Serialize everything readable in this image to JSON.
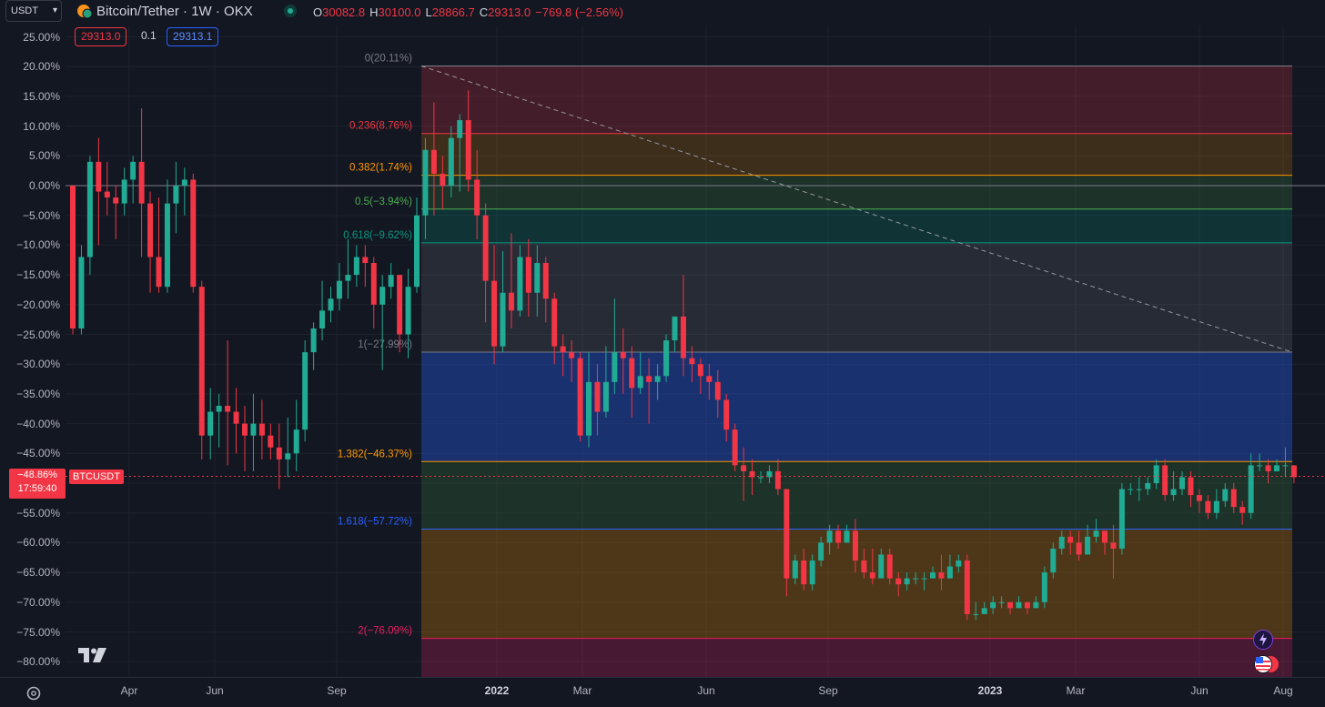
{
  "header": {
    "currency": "USDT",
    "symbol_title": "Bitcoin/Tether · 1W · OKX",
    "ohlc": [
      {
        "k": "O",
        "v": "30082.8"
      },
      {
        "k": "H",
        "v": "30100.0"
      },
      {
        "k": "L",
        "v": "28866.7"
      },
      {
        "k": "C",
        "v": "29313.0"
      }
    ],
    "change": "−769.8 (−2.56%)",
    "sell_price": "29313.0",
    "spread": "0.1",
    "buy_price": "29313.1"
  },
  "price_tag": {
    "percent": "−48.86%",
    "countdown": "17:59:40",
    "symbol": "BTCUSDT"
  },
  "y_axis_labels": [
    "25.00%",
    "20.00%",
    "15.00%",
    "10.00%",
    "5.00%",
    "0.00%",
    "−5.00%",
    "−10.00%",
    "−15.00%",
    "−20.00%",
    "−25.00%",
    "−30.00%",
    "−35.00%",
    "−40.00%",
    "−45.00%",
    "−50.00%",
    "−55.00%",
    "−60.00%",
    "−65.00%",
    "−70.00%",
    "−75.00%",
    "−80.00%"
  ],
  "x_axis_labels": [
    "Apr",
    "Jun",
    "Sep",
    "2022",
    "Mar",
    "Jun",
    "Sep",
    "2023",
    "Mar",
    "Jun",
    "Aug"
  ],
  "fib_levels": [
    {
      "ratio": "0",
      "label": "0(20.11%)",
      "pct": 20.11,
      "color": "#787b86"
    },
    {
      "ratio": "0.236",
      "label": "0.236(8.76%)",
      "pct": 8.76,
      "color": "#f23645"
    },
    {
      "ratio": "0.382",
      "label": "0.382(1.74%)",
      "pct": 1.74,
      "color": "#ff9800"
    },
    {
      "ratio": "0.5",
      "label": "0.5(−3.94%)",
      "pct": -3.94,
      "color": "#4caf50"
    },
    {
      "ratio": "0.618",
      "label": "0.618(−9.62%)",
      "pct": -9.62,
      "color": "#089981"
    },
    {
      "ratio": "1",
      "label": "1(−27.99%)",
      "pct": -27.99,
      "color": "#787b86"
    },
    {
      "ratio": "1.382",
      "label": "1.382(−46.37%)",
      "pct": -46.37,
      "color": "#ff9800"
    },
    {
      "ratio": "1.618",
      "label": "1.618(−57.72%)",
      "pct": -57.72,
      "color": "#2962ff"
    },
    {
      "ratio": "2",
      "label": "2(−76.09%)",
      "pct": -76.09,
      "color": "#e91e63"
    }
  ],
  "colors": {
    "up": "#22ab94",
    "down": "#f23645",
    "background": "#131722"
  },
  "icons": {
    "settings": "gear-icon",
    "logo": "tradingview-logo",
    "lightning": "lightning-icon",
    "flag": "us-flag-icon",
    "symbol": "bitcoin-tether-icon"
  },
  "chart_data": {
    "type": "candlestick",
    "y_unit": "percent change",
    "ylim": [
      -83,
      27
    ],
    "current_value": -48.86,
    "candles": [
      [
        0,
        -24,
        -25,
        -1
      ],
      [
        -24,
        -12,
        -25,
        -10
      ],
      [
        -12,
        4,
        -15,
        5
      ],
      [
        4,
        -1,
        -10,
        8
      ],
      [
        -1,
        -2,
        -5,
        4
      ],
      [
        -2,
        -3,
        -9,
        0
      ],
      [
        -3,
        1,
        -5,
        3
      ],
      [
        1,
        4,
        -3,
        5
      ],
      [
        4,
        -3,
        -12,
        13
      ],
      [
        -3,
        -12,
        -18,
        -1
      ],
      [
        -12,
        -17,
        -18,
        -2
      ],
      [
        -17,
        -3,
        -18,
        1
      ],
      [
        -3,
        0,
        -8,
        4
      ],
      [
        0,
        1,
        -5,
        3
      ],
      [
        1,
        -17,
        -18,
        2
      ],
      [
        -17,
        -42,
        -46,
        -16
      ],
      [
        -42,
        -38,
        -46,
        -34
      ],
      [
        -38,
        -37,
        -44,
        -35
      ],
      [
        -37,
        -38,
        -47,
        -26
      ],
      [
        -38,
        -40,
        -45,
        -34
      ],
      [
        -40,
        -42,
        -48,
        -37
      ],
      [
        -42,
        -40,
        -48,
        -35
      ],
      [
        -40,
        -42,
        -46,
        -36
      ],
      [
        -42,
        -44,
        -46,
        -40
      ],
      [
        -44,
        -46,
        -51,
        -40
      ],
      [
        -46,
        -45,
        -49,
        -39
      ],
      [
        -45,
        -41,
        -48,
        -36
      ],
      [
        -41,
        -28,
        -43,
        -26
      ],
      [
        -28,
        -24,
        -31,
        -23
      ],
      [
        -24,
        -21,
        -26,
        -16
      ],
      [
        -21,
        -19,
        -23,
        -17
      ],
      [
        -19,
        -16,
        -21,
        -13
      ],
      [
        -16,
        -15,
        -19,
        -9
      ],
      [
        -15,
        -12,
        -17,
        -10
      ],
      [
        -12,
        -13,
        -17,
        -10
      ],
      [
        -13,
        -20,
        -24,
        -12
      ],
      [
        -20,
        -17,
        -31,
        -15
      ],
      [
        -17,
        -15,
        -19,
        -13
      ],
      [
        -15,
        -25,
        -28,
        -15
      ],
      [
        -25,
        -17,
        -29,
        -14
      ],
      [
        -17,
        -5,
        -18,
        -2
      ],
      [
        -5,
        6,
        -9,
        8
      ],
      [
        6,
        2,
        -5,
        14
      ],
      [
        2,
        0,
        -4,
        5
      ],
      [
        0,
        8,
        -2,
        10
      ],
      [
        8,
        11,
        -1,
        12
      ],
      [
        11,
        1,
        -1,
        16
      ],
      [
        1,
        -5,
        -9,
        6
      ],
      [
        -5,
        -16,
        -23,
        -3
      ],
      [
        -16,
        -27,
        -30,
        -10
      ],
      [
        -27,
        -18,
        -28,
        -11
      ],
      [
        -18,
        -21,
        -24,
        -8
      ],
      [
        -21,
        -12,
        -22,
        -10
      ],
      [
        -12,
        -18,
        -22,
        -9
      ],
      [
        -18,
        -13,
        -22,
        -10
      ],
      [
        -13,
        -19,
        -23,
        -12
      ],
      [
        -19,
        -27,
        -30,
        -18
      ],
      [
        -27,
        -28,
        -32,
        -25
      ],
      [
        -28,
        -29,
        -33,
        -26
      ],
      [
        -29,
        -42,
        -43,
        -28
      ],
      [
        -42,
        -33,
        -44,
        -28
      ],
      [
        -33,
        -38,
        -42,
        -30
      ],
      [
        -38,
        -33,
        -39,
        -27
      ],
      [
        -33,
        -28,
        -35,
        -19
      ],
      [
        -28,
        -29,
        -35,
        -24
      ],
      [
        -29,
        -34,
        -39,
        -27
      ],
      [
        -34,
        -32,
        -35,
        -28
      ],
      [
        -32,
        -33,
        -40,
        -29
      ],
      [
        -33,
        -32,
        -36,
        -30
      ],
      [
        -32,
        -26,
        -33,
        -25
      ],
      [
        -26,
        -22,
        -28,
        -22
      ],
      [
        -22,
        -29,
        -32,
        -15
      ],
      [
        -29,
        -30,
        -33,
        -27
      ],
      [
        -30,
        -32,
        -35,
        -29
      ],
      [
        -32,
        -33,
        -36,
        -30
      ],
      [
        -33,
        -36,
        -39,
        -31
      ],
      [
        -36,
        -41,
        -43,
        -35
      ],
      [
        -41,
        -47,
        -48,
        -40
      ],
      [
        -47,
        -48,
        -53,
        -44
      ],
      [
        -48,
        -49,
        -52,
        -46
      ],
      [
        -49,
        -49,
        -50,
        -48
      ],
      [
        -49,
        -48,
        -50,
        -47
      ],
      [
        -48,
        -51,
        -52,
        -46
      ],
      [
        -51,
        -66,
        -69,
        -51
      ],
      [
        -66,
        -63,
        -67,
        -62
      ],
      [
        -63,
        -67,
        -68,
        -61
      ],
      [
        -67,
        -63,
        -68,
        -62
      ],
      [
        -63,
        -60,
        -64,
        -59
      ],
      [
        -60,
        -58,
        -62,
        -57
      ],
      [
        -58,
        -60,
        -61,
        -57
      ],
      [
        -60,
        -58,
        -60,
        -57
      ],
      [
        -58,
        -63,
        -65,
        -56
      ],
      [
        -63,
        -65,
        -66,
        -61
      ],
      [
        -65,
        -66,
        -67,
        -61
      ],
      [
        -66,
        -62,
        -65,
        -61
      ],
      [
        -62,
        -66,
        -67,
        -61
      ],
      [
        -66,
        -67,
        -69,
        -65
      ],
      [
        -67,
        -66,
        -68,
        -65
      ],
      [
        -66,
        -66,
        -67,
        -65
      ],
      [
        -66,
        -66,
        -68,
        -65
      ],
      [
        -66,
        -65,
        -66,
        -64
      ],
      [
        -65,
        -66,
        -68,
        -62
      ],
      [
        -66,
        -64,
        -65,
        -62
      ],
      [
        -64,
        -63,
        -65,
        -62
      ],
      [
        -63,
        -72,
        -73,
        -62
      ],
      [
        -72,
        -72,
        -73,
        -70
      ],
      [
        -72,
        -71,
        -72,
        -70
      ],
      [
        -71,
        -70,
        -72,
        -69
      ],
      [
        -70,
        -70,
        -71,
        -69
      ],
      [
        -70,
        -71,
        -72,
        -70
      ],
      [
        -71,
        -70,
        -71,
        -69
      ],
      [
        -70,
        -71,
        -72,
        -70
      ],
      [
        -71,
        -70,
        -71,
        -69
      ],
      [
        -70,
        -65,
        -71,
        -64
      ],
      [
        -65,
        -61,
        -66,
        -60
      ],
      [
        -61,
        -59,
        -62,
        -58
      ],
      [
        -59,
        -60,
        -62,
        -58
      ],
      [
        -60,
        -62,
        -63,
        -58
      ],
      [
        -62,
        -59,
        -62,
        -57
      ],
      [
        -59,
        -58,
        -60,
        -56
      ],
      [
        -58,
        -60,
        -62,
        -59
      ],
      [
        -60,
        -61,
        -66,
        -57
      ],
      [
        -61,
        -51,
        -62,
        -50
      ],
      [
        -51,
        -51,
        -52,
        -50
      ],
      [
        -51,
        -51,
        -53,
        -49
      ],
      [
        -51,
        -50,
        -52,
        -49
      ],
      [
        -50,
        -47,
        -51,
        -46
      ],
      [
        -47,
        -52,
        -53,
        -46
      ],
      [
        -52,
        -51,
        -53,
        -48
      ],
      [
        -51,
        -49,
        -52,
        -48
      ],
      [
        -49,
        -52,
        -54,
        -48
      ],
      [
        -52,
        -53,
        -55,
        -51
      ],
      [
        -53,
        -55,
        -56,
        -52
      ],
      [
        -55,
        -53,
        -56,
        -51
      ],
      [
        -53,
        -51,
        -54,
        -50
      ],
      [
        -51,
        -54,
        -55,
        -50
      ],
      [
        -54,
        -55,
        -57,
        -53
      ],
      [
        -55,
        -47,
        -56,
        -45
      ],
      [
        -47,
        -47,
        -48,
        -45
      ],
      [
        -47,
        -48,
        -50,
        -46
      ],
      [
        -48,
        -47,
        -48,
        -46
      ],
      [
        -47,
        -47,
        -49,
        -44
      ],
      [
        -47,
        -49,
        -50,
        -47
      ]
    ],
    "trendline": {
      "from": 20.11,
      "to": -27.99
    }
  }
}
